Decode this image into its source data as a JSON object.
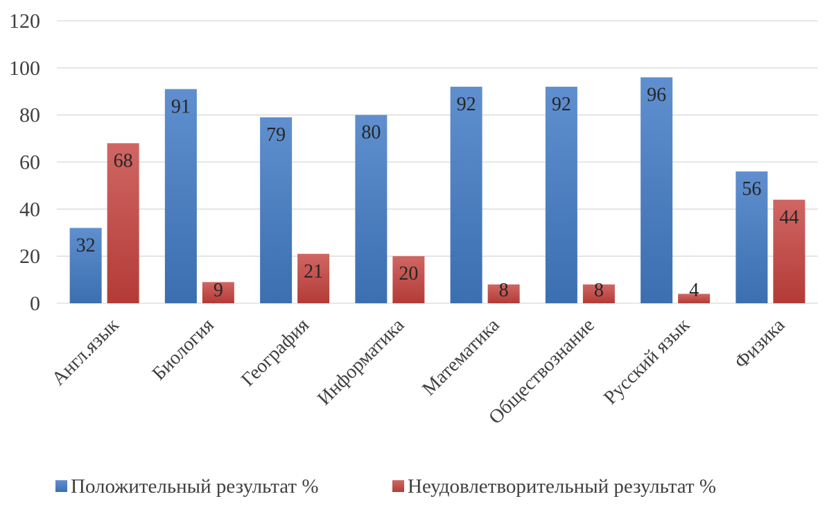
{
  "chart_data": {
    "type": "bar",
    "title": "",
    "xlabel": "",
    "ylabel": "",
    "categories": [
      "Англ.язык",
      "Биология",
      "География",
      "Информатика",
      "Математика",
      "Обществознание",
      "Русский язык",
      "Физика"
    ],
    "series": [
      {
        "name": "Положительный результат %",
        "color": "#4a7ebb",
        "values": [
          32,
          91,
          79,
          80,
          92,
          92,
          96,
          56
        ]
      },
      {
        "name": "Неудовлетворительный результат %",
        "color": "#be4b48",
        "values": [
          68,
          9,
          21,
          20,
          8,
          8,
          4,
          44
        ]
      }
    ],
    "ylim": [
      0,
      120
    ],
    "yticks": [
      0,
      20,
      40,
      60,
      80,
      100,
      120
    ],
    "grid": true,
    "legend_position": "bottom",
    "data_labels": true
  }
}
